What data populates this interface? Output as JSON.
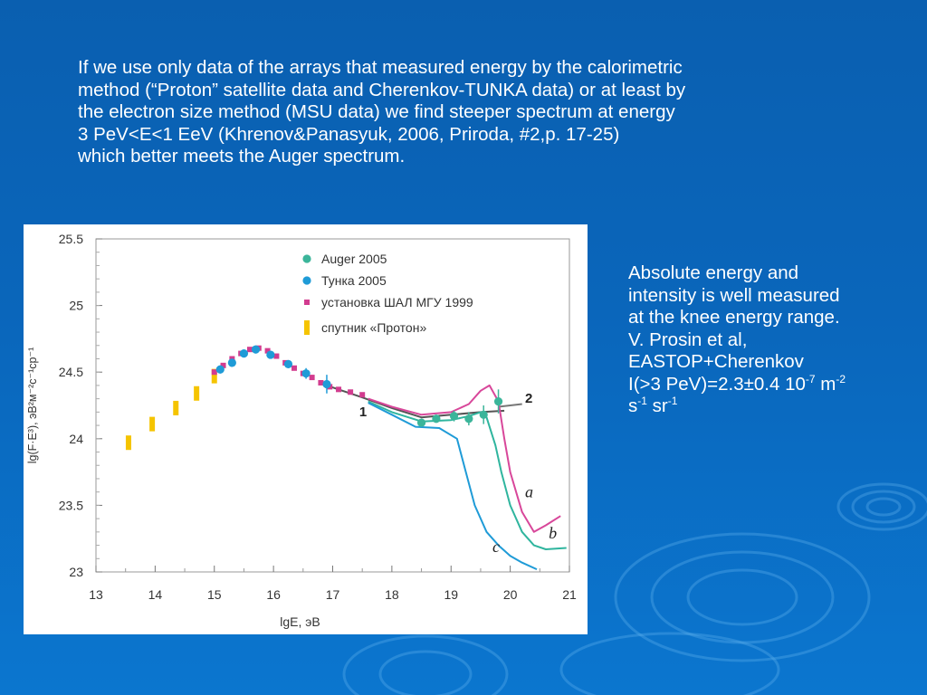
{
  "slide": {
    "paragraph_lines": [
      "If we use only data of the arrays that measured energy by the calorimetric",
      "method (“Proton” satellite data and Cherenkov-TUNKA data) or at least by",
      "the electron size method (MSU data) we find steeper spectrum at energy",
      "3 PeV<E<1 EeV (Khrenov&Panasyuk, 2006, Priroda, #2,p. 17-25)",
      "which better meets the Auger spectrum."
    ],
    "side": {
      "line1": "Absolute energy and",
      "line2": "intensity is well measured",
      "line3": "at the knee energy range.",
      "line4": "V. Prosin et al,",
      "line5": "EASTOP+Cherenkov",
      "line6_main": "I(>3 PeV)=2.3±0.4 10",
      "line6_exp1": "-7",
      "line6_mid": " m",
      "line6_exp2": "-2",
      "line7_main": "s",
      "line7_exp1": "-1",
      "line7_mid": " sr",
      "line7_exp2": "-1"
    }
  },
  "chart_data": {
    "type": "scatter",
    "xlabel": "lgE, эВ",
    "ylabel": "lg(F·E³), эВ²м⁻²с⁻¹ср⁻¹",
    "xlim": [
      13,
      21
    ],
    "ylim": [
      23,
      25.5
    ],
    "xticks": [
      "13",
      "14",
      "15",
      "16",
      "17",
      "18",
      "19",
      "20",
      "21"
    ],
    "yticks": [
      "23",
      "23.5",
      "24",
      "24.5",
      "25",
      "25.5"
    ],
    "legend_position": "top-center",
    "legend": [
      {
        "label": "Auger 2005",
        "marker": "circle",
        "color": "#3bb59a"
      },
      {
        "label": "Тунка 2005",
        "marker": "circle",
        "color": "#1f9bd7"
      },
      {
        "label": "установка ШАЛ МГУ 1999",
        "marker": "square",
        "color": "#d23c8f"
      },
      {
        "label": "спутник «Протон»",
        "marker": "bar",
        "color": "#f5c400"
      }
    ],
    "series": [
      {
        "name": "спутник «Протон»",
        "marker": "bar",
        "color": "#f5c400",
        "x": [
          13.55,
          13.95,
          14.35,
          14.7,
          15.0
        ],
        "y": [
          23.97,
          24.11,
          24.23,
          24.34,
          24.47
        ]
      },
      {
        "name": "установка ШАЛ МГУ 1999",
        "marker": "square",
        "color": "#d23c8f",
        "x": [
          15.0,
          15.15,
          15.3,
          15.45,
          15.6,
          15.75,
          15.9,
          16.05,
          16.2,
          16.35,
          16.5,
          16.65,
          16.8,
          16.95,
          17.1,
          17.3,
          17.5
        ],
        "y": [
          24.5,
          24.55,
          24.6,
          24.64,
          24.67,
          24.68,
          24.66,
          24.62,
          24.57,
          24.53,
          24.49,
          24.46,
          24.42,
          24.39,
          24.37,
          24.35,
          24.33
        ]
      },
      {
        "name": "Тунка 2005",
        "marker": "circle",
        "color": "#1f9bd7",
        "x": [
          15.1,
          15.3,
          15.5,
          15.7,
          15.95,
          16.25,
          16.55,
          16.9
        ],
        "y": [
          24.52,
          24.57,
          24.64,
          24.67,
          24.63,
          24.56,
          24.49,
          24.41
        ],
        "err": [
          0.03,
          0.03,
          0.03,
          0.03,
          0.03,
          0.03,
          0.04,
          0.07
        ]
      },
      {
        "name": "Auger 2005",
        "marker": "circle",
        "color": "#3bb59a",
        "x": [
          18.5,
          18.75,
          19.05,
          19.3,
          19.55,
          19.8
        ],
        "y": [
          24.12,
          24.15,
          24.17,
          24.15,
          24.18,
          24.28
        ],
        "err": [
          0.02,
          0.03,
          0.04,
          0.05,
          0.07,
          0.09
        ]
      }
    ],
    "curves": [
      {
        "label": "1",
        "color": "#555555",
        "x": [
          16.9,
          17.5,
          18.0,
          18.5,
          19.0,
          19.5,
          19.9
        ],
        "y": [
          24.4,
          24.31,
          24.23,
          24.16,
          24.18,
          24.2,
          24.21
        ]
      },
      {
        "label": "2",
        "color": "#777777",
        "x": [
          19.8,
          20.2
        ],
        "y": [
          24.24,
          24.26
        ]
      },
      {
        "label": "a",
        "color": "#d8479a",
        "x": [
          17.6,
          18.0,
          18.5,
          19.0,
          19.3,
          19.5,
          19.65,
          19.8,
          19.9,
          20.0,
          20.2,
          20.4,
          20.6,
          20.85
        ],
        "y": [
          24.3,
          24.24,
          24.18,
          24.2,
          24.26,
          24.36,
          24.4,
          24.28,
          24.0,
          23.75,
          23.45,
          23.3,
          23.35,
          23.42
        ]
      },
      {
        "label": "b",
        "color": "#2fb59e",
        "x": [
          17.6,
          18.0,
          18.5,
          19.0,
          19.3,
          19.5,
          19.6,
          19.75,
          19.85,
          20.0,
          20.2,
          20.4,
          20.6,
          20.95
        ],
        "y": [
          24.28,
          24.2,
          24.13,
          24.14,
          24.17,
          24.2,
          24.16,
          23.95,
          23.75,
          23.5,
          23.3,
          23.2,
          23.17,
          23.18
        ]
      },
      {
        "label": "c",
        "color": "#1f9bd7",
        "x": [
          17.6,
          18.0,
          18.4,
          18.8,
          19.1,
          19.25,
          19.4,
          19.6,
          19.8,
          20.0,
          20.2,
          20.45
        ],
        "y": [
          24.27,
          24.18,
          24.09,
          24.08,
          24.0,
          23.75,
          23.5,
          23.3,
          23.2,
          23.12,
          23.07,
          23.02
        ]
      }
    ],
    "annotations": [
      {
        "text": "1",
        "x": 17.45,
        "y": 24.17
      },
      {
        "text": "2",
        "x": 20.25,
        "y": 24.27
      },
      {
        "text": "a",
        "x": 20.25,
        "y": 23.56
      },
      {
        "text": "b",
        "x": 20.65,
        "y": 23.25
      },
      {
        "text": "c",
        "x": 19.7,
        "y": 23.15
      }
    ]
  }
}
